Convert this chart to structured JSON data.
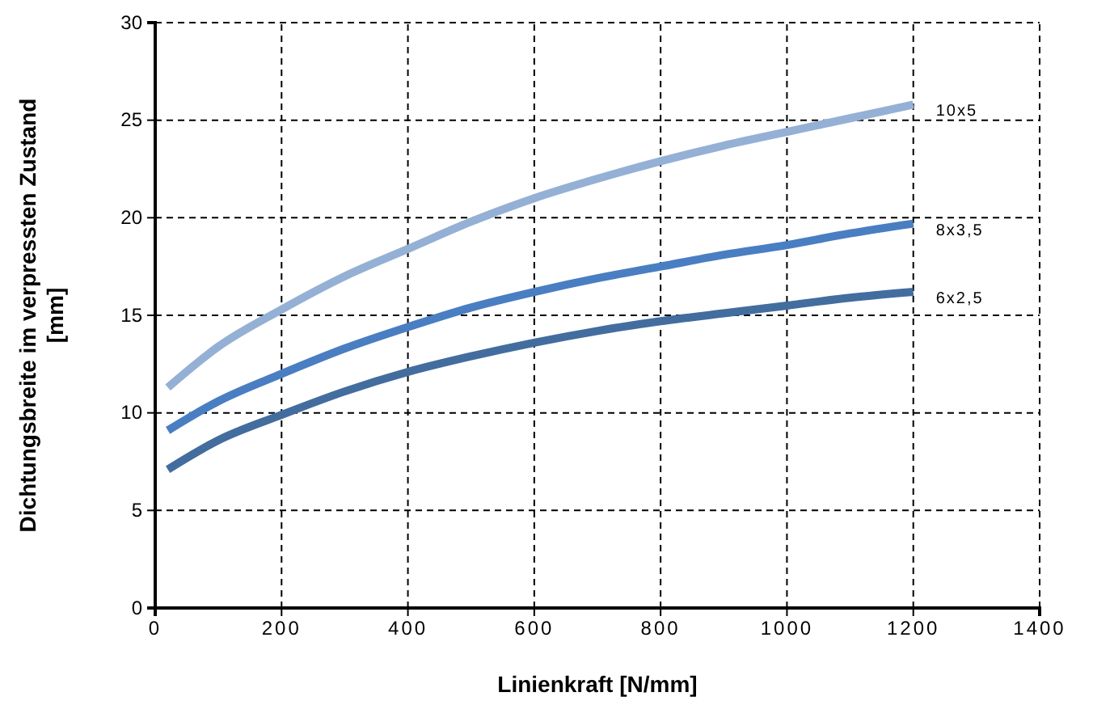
{
  "chart_data": {
    "type": "line",
    "xlabel": "Linienkraft [N/mm]",
    "ylabel": "Dichtungsbreite im verpressten  Zustand [mm]",
    "x": [
      20,
      100,
      200,
      300,
      400,
      500,
      600,
      700,
      800,
      900,
      1000,
      1100,
      1200
    ],
    "series": [
      {
        "name": "10x5",
        "color": "#95b0d5",
        "values": [
          11.3,
          13.4,
          15.3,
          17.0,
          18.4,
          19.8,
          21.0,
          22.0,
          22.9,
          23.7,
          24.4,
          25.1,
          25.8
        ]
      },
      {
        "name": "8x3,5",
        "color": "#4a7ec2",
        "values": [
          9.1,
          10.6,
          12.0,
          13.3,
          14.4,
          15.4,
          16.2,
          16.9,
          17.5,
          18.1,
          18.6,
          19.2,
          19.7
        ]
      },
      {
        "name": "6x2,5",
        "color": "#436d9e",
        "values": [
          7.1,
          8.6,
          9.9,
          11.1,
          12.1,
          12.9,
          13.6,
          14.2,
          14.7,
          15.1,
          15.5,
          15.9,
          16.2
        ]
      }
    ],
    "xlim": [
      0,
      1400
    ],
    "xticks": [
      0,
      200,
      400,
      600,
      800,
      1000,
      1200,
      1400
    ],
    "ylim": [
      0,
      30
    ],
    "yticks": [
      0,
      5,
      10,
      15,
      20,
      25,
      30
    ],
    "grid": true,
    "legend": false,
    "line_style": "solid",
    "marker": "none"
  }
}
